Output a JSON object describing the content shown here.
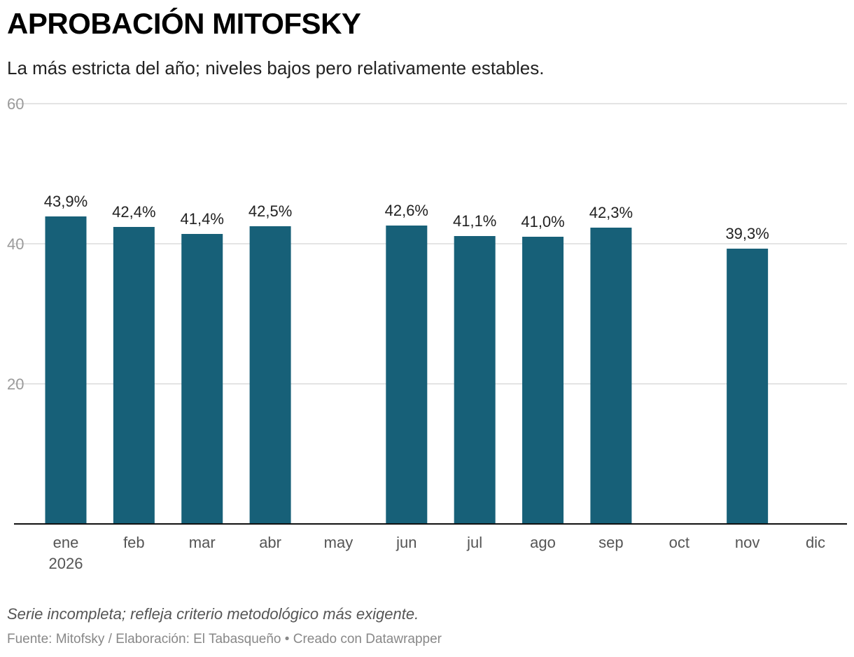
{
  "chart_data": {
    "type": "bar",
    "title": "APROBACIÓN MITOFSKY",
    "subtitle": "La más estricta del año; niveles bajos pero relativamente estables.",
    "categories": [
      "ene",
      "feb",
      "mar",
      "abr",
      "may",
      "jun",
      "jul",
      "ago",
      "sep",
      "oct",
      "nov",
      "dic"
    ],
    "first_category_year": "2026",
    "values": [
      43.9,
      42.4,
      41.4,
      42.5,
      null,
      42.6,
      41.1,
      41.0,
      42.3,
      null,
      39.3,
      null
    ],
    "value_labels": [
      "43,9%",
      "42,4%",
      "41,4%",
      "42,5%",
      "",
      "42,6%",
      "41,1%",
      "41,0%",
      "42,3%",
      "",
      "39,3%",
      ""
    ],
    "yticks": [
      "20",
      "40",
      "60"
    ],
    "ylim": [
      0,
      60
    ],
    "grid": true,
    "bar_color": "#176078"
  },
  "footer": {
    "note": "Serie incompleta; refleja criterio metodológico más exigente.",
    "source": "Fuente: Mitofsky / Elaboración: El Tabasqueño",
    "separator": " • ",
    "credit": "Creado con Datawrapper"
  }
}
